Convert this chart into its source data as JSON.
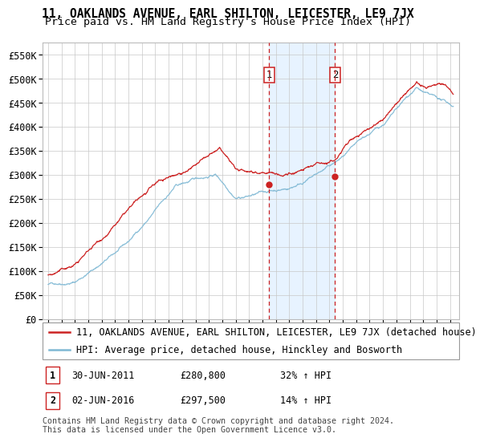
{
  "title": "11, OAKLANDS AVENUE, EARL SHILTON, LEICESTER, LE9 7JX",
  "subtitle": "Price paid vs. HM Land Registry's House Price Index (HPI)",
  "ylim": [
    0,
    575000
  ],
  "yticks": [
    0,
    50000,
    100000,
    150000,
    200000,
    250000,
    300000,
    350000,
    400000,
    450000,
    500000,
    550000
  ],
  "ytick_labels": [
    "£0",
    "£50K",
    "£100K",
    "£150K",
    "£200K",
    "£250K",
    "£300K",
    "£350K",
    "£400K",
    "£450K",
    "£500K",
    "£550K"
  ],
  "hpi_color": "#7eb8d4",
  "price_color": "#cc2222",
  "marker_color": "#cc2222",
  "vline_color": "#cc2222",
  "shade_color": "#ddeeff",
  "title_fontsize": 10.5,
  "subtitle_fontsize": 9.5,
  "tick_fontsize": 8.5,
  "legend_fontsize": 8.5,
  "sale1_x": 2011.5,
  "sale1_price": 280800,
  "sale2_x": 2016.42,
  "sale2_price": 297500,
  "legend_line1": "11, OAKLANDS AVENUE, EARL SHILTON, LEICESTER, LE9 7JX (detached house)",
  "legend_line2": "HPI: Average price, detached house, Hinckley and Bosworth",
  "footer": "Contains HM Land Registry data © Crown copyright and database right 2024.\nThis data is licensed under the Open Government Licence v3.0."
}
